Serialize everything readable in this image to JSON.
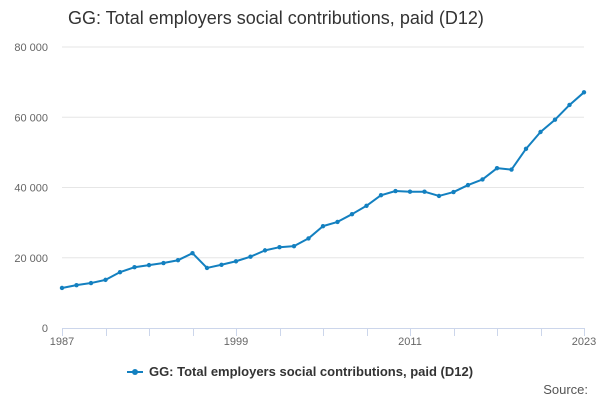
{
  "title": "GG: Total employers social contributions, paid (D12)",
  "source_label": "Source:",
  "colors": {
    "series": "#1380c0",
    "grid": "#e6e6e6",
    "axis": "#ccd6eb",
    "text": "#333333"
  },
  "chart_data": {
    "type": "line",
    "title": "GG: Total employers social contributions, paid (D12)",
    "xlabel": "",
    "ylabel": "",
    "x": [
      1987,
      1988,
      1989,
      1990,
      1991,
      1992,
      1993,
      1994,
      1995,
      1996,
      1997,
      1998,
      1999,
      2000,
      2001,
      2002,
      2003,
      2004,
      2005,
      2006,
      2007,
      2008,
      2009,
      2010,
      2011,
      2012,
      2013,
      2014,
      2015,
      2016,
      2017,
      2018,
      2019,
      2020,
      2021,
      2022,
      2023
    ],
    "series": [
      {
        "name": "GG: Total employers social contributions, paid (D12)",
        "values": [
          11400,
          12200,
          12800,
          13700,
          15900,
          17300,
          17900,
          18500,
          19300,
          21300,
          17100,
          18000,
          19000,
          20300,
          22100,
          23000,
          23300,
          25500,
          29000,
          30200,
          32400,
          34800,
          37800,
          39000,
          38800,
          38800,
          37600,
          38700,
          40700,
          42300,
          45500,
          45100,
          51000,
          55800,
          59300,
          63500,
          67100
        ]
      }
    ],
    "xlim": [
      1987,
      2023
    ],
    "ylim": [
      0,
      80000
    ],
    "yticks": [
      0,
      20000,
      40000,
      60000,
      80000
    ],
    "ytick_labels": [
      "0",
      "20 000",
      "40 000",
      "60 000",
      "80 000"
    ],
    "xtick_labels": [
      "1987",
      "1999",
      "2011",
      "2023"
    ],
    "xtick_label_years": [
      1987,
      1999,
      2011,
      2023
    ],
    "grid": true,
    "legend": "bottom-center"
  }
}
